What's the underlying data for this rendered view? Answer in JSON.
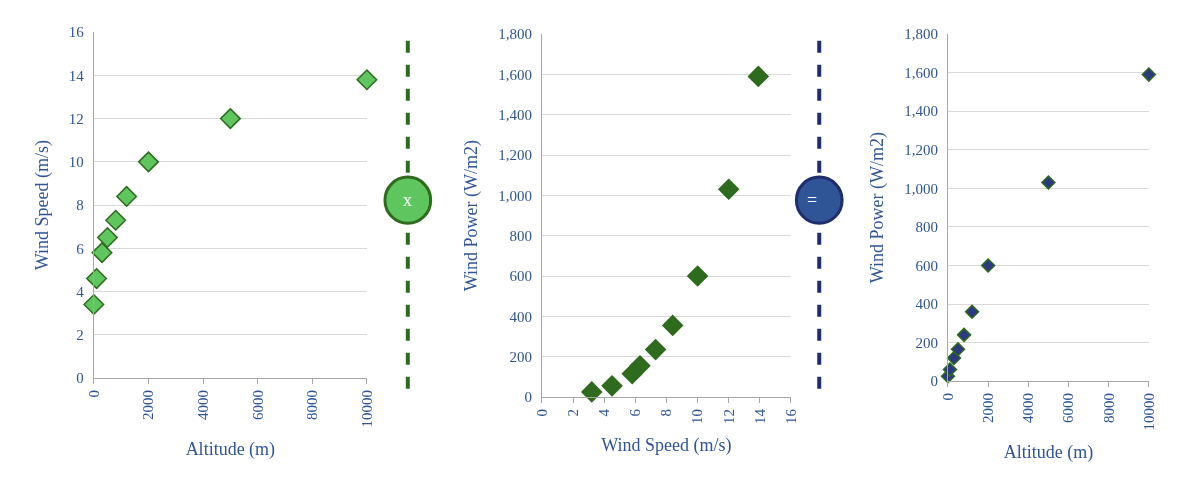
{
  "chart_data": [
    {
      "type": "scatter",
      "xlabel": "Altitude (m)",
      "ylabel": "Wind Speed (m/s)",
      "marker": "diamond",
      "grid": "y",
      "annotations": [
        "x"
      ],
      "x": [
        0,
        100,
        300,
        500,
        800,
        1200,
        2000,
        5000,
        10000
      ],
      "series": [
        {
          "color": "#5fc65f",
          "values": [
            3.4,
            4.6,
            5.8,
            6.5,
            7.3,
            8.4,
            10,
            12,
            13.8
          ]
        }
      ],
      "xlim": [
        0,
        10000
      ],
      "xticks": [
        0,
        2000,
        4000,
        6000,
        8000,
        10000
      ],
      "ylim": [
        0,
        16
      ],
      "yticks": [
        0,
        2,
        4,
        6,
        8,
        10,
        12,
        14,
        16
      ]
    },
    {
      "type": "scatter",
      "xlabel": "Wind Speed (m/s)",
      "ylabel": "Wind Power (W/m2)",
      "marker": "diamond",
      "grid": "y",
      "annotations": [
        "="
      ],
      "x": [
        3.2,
        4.5,
        5.8,
        6.3,
        7.3,
        8.4,
        10,
        12,
        13.9
      ],
      "series": [
        {
          "color": "#2e6b1e",
          "values": [
            25,
            55,
            115,
            155,
            235,
            355,
            600,
            1030,
            1590
          ]
        }
      ],
      "xlim": [
        0,
        16
      ],
      "xticks": [
        0,
        2,
        4,
        6,
        8,
        10,
        12,
        14,
        16
      ],
      "ylim": [
        0,
        1800
      ],
      "yticks": [
        {
          "value": 0,
          "label": "0"
        },
        {
          "value": 200,
          "label": "200"
        },
        {
          "value": 400,
          "label": "400"
        },
        {
          "value": 600,
          "label": "600"
        },
        {
          "value": 800,
          "label": "800"
        },
        {
          "value": 1000,
          "label": "1,000"
        },
        {
          "value": 1200,
          "label": "1,200"
        },
        {
          "value": 1400,
          "label": "1,400"
        },
        {
          "value": 1600,
          "label": "1,600"
        },
        {
          "value": 1800,
          "label": "1,800"
        }
      ]
    },
    {
      "type": "scatter",
      "xlabel": "Altitude (m)",
      "ylabel": "Wind Power (W/m2)",
      "marker": "diamond",
      "grid": "y",
      "x": [
        0,
        100,
        300,
        500,
        800,
        1200,
        2000,
        5000,
        10000
      ],
      "series": [
        {
          "color": "#2b3a80",
          "values": [
            25,
            60,
            120,
            165,
            240,
            360,
            600,
            1030,
            1590
          ]
        }
      ],
      "xlim": [
        0,
        10000
      ],
      "xticks": [
        0,
        2000,
        4000,
        6000,
        8000,
        10000
      ],
      "ylim": [
        0,
        1800
      ],
      "yticks": [
        {
          "value": 0,
          "label": "0"
        },
        {
          "value": 200,
          "label": "200"
        },
        {
          "value": 400,
          "label": "400"
        },
        {
          "value": 600,
          "label": "600"
        },
        {
          "value": 800,
          "label": "800"
        },
        {
          "value": 1000,
          "label": "1,000"
        },
        {
          "value": 1200,
          "label": "1,200"
        },
        {
          "value": 1400,
          "label": "1,400"
        },
        {
          "value": 1600,
          "label": "1,600"
        },
        {
          "value": 1800,
          "label": "1,800"
        }
      ]
    }
  ]
}
